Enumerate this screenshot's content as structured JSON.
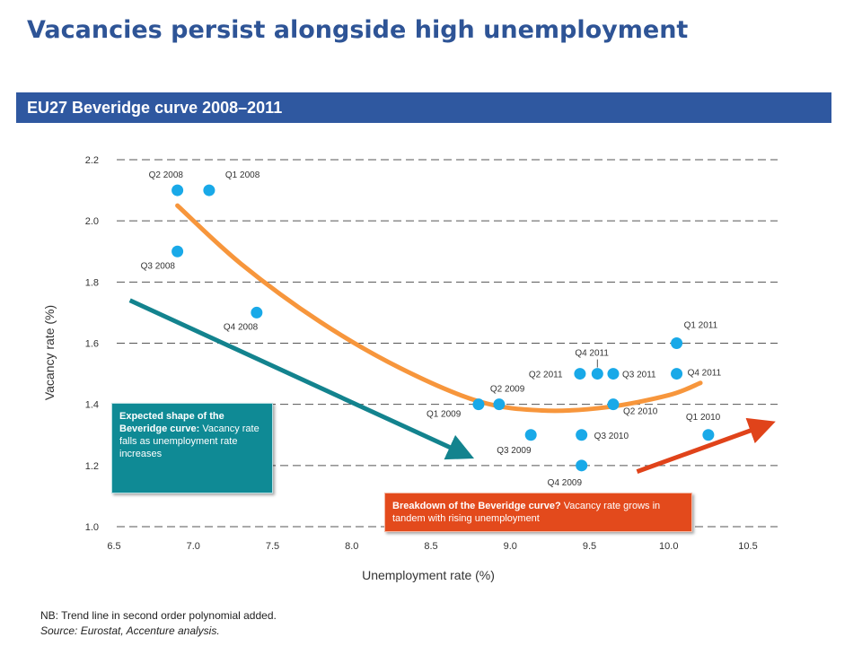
{
  "page": {
    "title": "Vacancies persist alongside high unemployment",
    "banner": "EU27 Beveridge curve 2008–2011",
    "note": "NB: Trend line in second order polynomial added.",
    "source": "Source: Eurostat, Accenture analysis."
  },
  "callouts": {
    "expected_bold": "Expected shape of the Beveridge curve:",
    "expected_text": " Vacancy rate falls as unemployment rate increases",
    "breakdown_bold": "Breakdown of the Beveridge curve?",
    "breakdown_text": " Vacancy rate grows in tandem with rising unemployment"
  },
  "colors": {
    "points": "#19a9e8",
    "trend": "#f7963c",
    "expected_arrow": "#13838e",
    "breakdown_arrow": "#e0431a",
    "grid": "#555555"
  },
  "chart_data": {
    "type": "scatter",
    "xlabel": "Unemployment rate (%)",
    "ylabel": "Vacancy rate (%)",
    "xlim": [
      6.5,
      10.5
    ],
    "ylim": [
      1.0,
      2.2
    ],
    "xticks": [
      "6.5",
      "7.0",
      "7.5",
      "8.0",
      "8.5",
      "9.0",
      "9.5",
      "10.0",
      "10.5"
    ],
    "yticks": [
      "1.0",
      "1.2",
      "1.4",
      "1.6",
      "1.8",
      "2.0",
      "2.2"
    ],
    "grid": "horizontal dashed",
    "trend_line": "second order polynomial",
    "points": [
      {
        "label": "Q1 2008",
        "x": 7.1,
        "y": 2.1
      },
      {
        "label": "Q2 2008",
        "x": 6.9,
        "y": 2.1
      },
      {
        "label": "Q3 2008",
        "x": 6.9,
        "y": 1.9
      },
      {
        "label": "Q4 2008",
        "x": 7.4,
        "y": 1.7
      },
      {
        "label": "Q1 2009",
        "x": 8.8,
        "y": 1.4
      },
      {
        "label": "Q2 2009",
        "x": 8.93,
        "y": 1.4
      },
      {
        "label": "Q3 2009",
        "x": 9.13,
        "y": 1.3
      },
      {
        "label": "Q4 2009",
        "x": 9.45,
        "y": 1.2
      },
      {
        "label": "Q1 2010",
        "x": 10.25,
        "y": 1.3
      },
      {
        "label": "Q2 2010",
        "x": 9.65,
        "y": 1.4
      },
      {
        "label": "Q3 2010",
        "x": 9.45,
        "y": 1.3
      },
      {
        "label": "Q1 2011",
        "x": 10.05,
        "y": 1.6
      },
      {
        "label": "Q2 2011",
        "x": 9.44,
        "y": 1.5
      },
      {
        "label": "Q3 2011",
        "x": 9.65,
        "y": 1.5
      },
      {
        "label": "Q4 2011",
        "x": 9.55,
        "y": 1.5
      },
      {
        "label": "Q4 2011",
        "x": 10.05,
        "y": 1.5
      }
    ],
    "trend": [
      {
        "x": 6.9,
        "y": 2.05
      },
      {
        "x": 7.3,
        "y": 1.86
      },
      {
        "x": 7.8,
        "y": 1.67
      },
      {
        "x": 8.3,
        "y": 1.52
      },
      {
        "x": 8.8,
        "y": 1.41
      },
      {
        "x": 9.2,
        "y": 1.38
      },
      {
        "x": 9.6,
        "y": 1.39
      },
      {
        "x": 10.0,
        "y": 1.43
      },
      {
        "x": 10.2,
        "y": 1.47
      }
    ],
    "arrows": [
      {
        "name": "expected",
        "from": [
          6.6,
          1.74
        ],
        "to": [
          8.7,
          1.24
        ]
      },
      {
        "name": "breakdown",
        "from": [
          9.8,
          1.18
        ],
        "to": [
          10.6,
          1.33
        ]
      }
    ]
  }
}
